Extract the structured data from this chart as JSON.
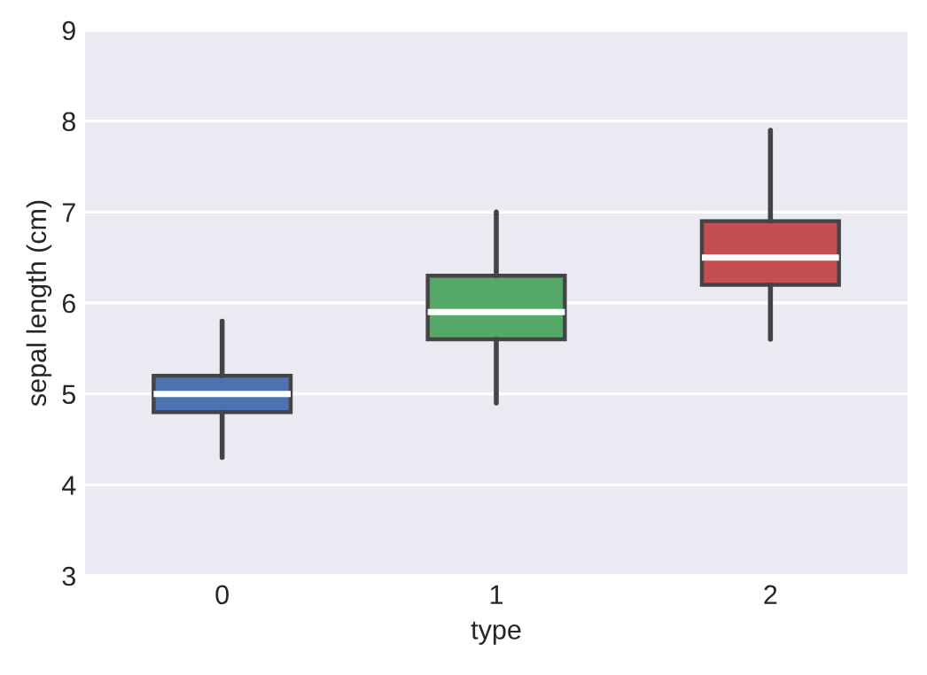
{
  "chart_data": {
    "type": "box",
    "xlabel": "type",
    "ylabel": "sepal length (cm)",
    "categories": [
      "0",
      "1",
      "2"
    ],
    "colors": [
      "#4c72b0",
      "#55a868",
      "#c44e52"
    ],
    "boxes": [
      {
        "low": 4.3,
        "q1": 4.8,
        "median": 5.0,
        "q3": 5.2,
        "high": 5.8
      },
      {
        "low": 4.9,
        "q1": 5.6,
        "median": 5.9,
        "q3": 6.3,
        "high": 7.0
      },
      {
        "low": 5.6,
        "q1": 6.2,
        "median": 6.5,
        "q3": 6.9,
        "high": 7.9
      }
    ],
    "ylim": [
      3,
      9
    ],
    "yticks": [
      3,
      4,
      5,
      6,
      7,
      8,
      9
    ],
    "grid": "y",
    "legend": false
  }
}
